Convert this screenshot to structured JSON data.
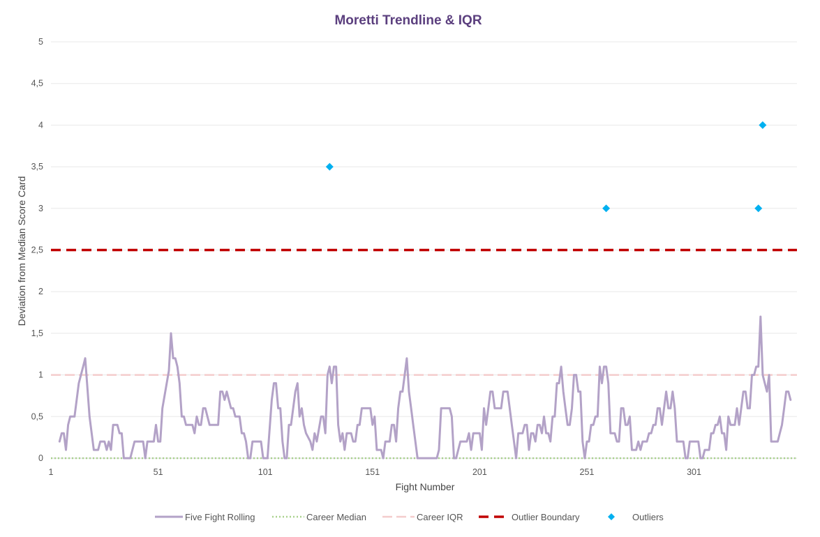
{
  "chart_data": {
    "type": "line",
    "title": "Moretti Trendline & IQR",
    "xlabel": "Fight Number",
    "ylabel": "Deviation from Median Score Card",
    "xlim": [
      1,
      349
    ],
    "ylim": [
      0,
      5
    ],
    "x_ticks": [
      "1",
      "51",
      "101",
      "151",
      "201",
      "251",
      "301"
    ],
    "x_tick_values": [
      1,
      51,
      101,
      151,
      201,
      251,
      301
    ],
    "y_ticks": [
      "0",
      "0,5",
      "1",
      "1,5",
      "2",
      "2,5",
      "3",
      "3,5",
      "4",
      "4,5",
      "5"
    ],
    "y_tick_values": [
      0,
      0.5,
      1,
      1.5,
      2,
      2.5,
      3,
      3.5,
      4,
      4.5,
      5
    ],
    "grid": true,
    "legend_position": "bottom",
    "series": [
      {
        "name": "Five Fight Rolling",
        "kind": "line",
        "color": "#b3a2c7",
        "points": [
          [
            5,
            0.2
          ],
          [
            6,
            0.3
          ],
          [
            7,
            0.3
          ],
          [
            8,
            0.1
          ],
          [
            9,
            0.4
          ],
          [
            10,
            0.5
          ],
          [
            12,
            0.5
          ],
          [
            14,
            0.9
          ],
          [
            16,
            1.1
          ],
          [
            17,
            1.2
          ],
          [
            19,
            0.5
          ],
          [
            21,
            0.1
          ],
          [
            23,
            0.1
          ],
          [
            24,
            0.2
          ],
          [
            26,
            0.2
          ],
          [
            27,
            0.1
          ],
          [
            28,
            0.2
          ],
          [
            29,
            0.1
          ],
          [
            30,
            0.4
          ],
          [
            32,
            0.4
          ],
          [
            33,
            0.3
          ],
          [
            34,
            0.3
          ],
          [
            35,
            0.0
          ],
          [
            38,
            0.0
          ],
          [
            40,
            0.2
          ],
          [
            44,
            0.2
          ],
          [
            45,
            0.0
          ],
          [
            46,
            0.2
          ],
          [
            49,
            0.2
          ],
          [
            50,
            0.4
          ],
          [
            51,
            0.2
          ],
          [
            52,
            0.2
          ],
          [
            53,
            0.6
          ],
          [
            55,
            0.9
          ],
          [
            56,
            1.05
          ],
          [
            57,
            1.5
          ],
          [
            58,
            1.2
          ],
          [
            59,
            1.2
          ],
          [
            60,
            1.1
          ],
          [
            61,
            0.9
          ],
          [
            62,
            0.5
          ],
          [
            63,
            0.5
          ],
          [
            64,
            0.4
          ],
          [
            67,
            0.4
          ],
          [
            68,
            0.3
          ],
          [
            69,
            0.5
          ],
          [
            70,
            0.4
          ],
          [
            71,
            0.4
          ],
          [
            72,
            0.6
          ],
          [
            73,
            0.6
          ],
          [
            75,
            0.4
          ],
          [
            79,
            0.4
          ],
          [
            80,
            0.8
          ],
          [
            81,
            0.8
          ],
          [
            82,
            0.7
          ],
          [
            83,
            0.8
          ],
          [
            85,
            0.6
          ],
          [
            86,
            0.6
          ],
          [
            87,
            0.5
          ],
          [
            89,
            0.5
          ],
          [
            90,
            0.3
          ],
          [
            91,
            0.3
          ],
          [
            92,
            0.2
          ],
          [
            93,
            0.0
          ],
          [
            94,
            0.0
          ],
          [
            95,
            0.2
          ],
          [
            99,
            0.2
          ],
          [
            100,
            0.0
          ],
          [
            102,
            0.0
          ],
          [
            104,
            0.7
          ],
          [
            105,
            0.9
          ],
          [
            106,
            0.9
          ],
          [
            107,
            0.6
          ],
          [
            108,
            0.6
          ],
          [
            109,
            0.2
          ],
          [
            110,
            0.0
          ],
          [
            111,
            0.0
          ],
          [
            112,
            0.4
          ],
          [
            113,
            0.4
          ],
          [
            114,
            0.6
          ],
          [
            115,
            0.8
          ],
          [
            116,
            0.9
          ],
          [
            117,
            0.5
          ],
          [
            118,
            0.6
          ],
          [
            119,
            0.4
          ],
          [
            120,
            0.3
          ],
          [
            122,
            0.2
          ],
          [
            123,
            0.1
          ],
          [
            124,
            0.3
          ],
          [
            125,
            0.2
          ],
          [
            127,
            0.5
          ],
          [
            128,
            0.5
          ],
          [
            129,
            0.3
          ],
          [
            130,
            1.0
          ],
          [
            131,
            1.1
          ],
          [
            132,
            0.9
          ],
          [
            133,
            1.1
          ],
          [
            134,
            1.1
          ],
          [
            135,
            0.4
          ],
          [
            136,
            0.2
          ],
          [
            137,
            0.3
          ],
          [
            138,
            0.1
          ],
          [
            139,
            0.3
          ],
          [
            141,
            0.3
          ],
          [
            142,
            0.2
          ],
          [
            143,
            0.2
          ],
          [
            144,
            0.4
          ],
          [
            145,
            0.4
          ],
          [
            146,
            0.6
          ],
          [
            150,
            0.6
          ],
          [
            151,
            0.4
          ],
          [
            152,
            0.5
          ],
          [
            153,
            0.1
          ],
          [
            155,
            0.1
          ],
          [
            156,
            0.0
          ],
          [
            157,
            0.2
          ],
          [
            159,
            0.2
          ],
          [
            160,
            0.4
          ],
          [
            161,
            0.4
          ],
          [
            162,
            0.2
          ],
          [
            163,
            0.6
          ],
          [
            164,
            0.8
          ],
          [
            165,
            0.8
          ],
          [
            166,
            1.0
          ],
          [
            167,
            1.2
          ],
          [
            168,
            0.8
          ],
          [
            169,
            0.6
          ],
          [
            170,
            0.4
          ],
          [
            171,
            0.2
          ],
          [
            172,
            0.0
          ],
          [
            181,
            0.0
          ],
          [
            182,
            0.1
          ],
          [
            183,
            0.6
          ],
          [
            187,
            0.6
          ],
          [
            188,
            0.5
          ],
          [
            189,
            0.0
          ],
          [
            190,
            0.0
          ],
          [
            192,
            0.2
          ],
          [
            195,
            0.2
          ],
          [
            196,
            0.3
          ],
          [
            197,
            0.1
          ],
          [
            198,
            0.3
          ],
          [
            201,
            0.3
          ],
          [
            202,
            0.1
          ],
          [
            203,
            0.6
          ],
          [
            204,
            0.4
          ],
          [
            205,
            0.6
          ],
          [
            206,
            0.8
          ],
          [
            207,
            0.8
          ],
          [
            208,
            0.6
          ],
          [
            211,
            0.6
          ],
          [
            212,
            0.8
          ],
          [
            214,
            0.8
          ],
          [
            215,
            0.6
          ],
          [
            216,
            0.4
          ],
          [
            217,
            0.2
          ],
          [
            218,
            0.0
          ],
          [
            219,
            0.3
          ],
          [
            220,
            0.3
          ],
          [
            221,
            0.3
          ],
          [
            222,
            0.4
          ],
          [
            223,
            0.4
          ],
          [
            224,
            0.1
          ],
          [
            225,
            0.3
          ],
          [
            226,
            0.3
          ],
          [
            227,
            0.2
          ],
          [
            228,
            0.4
          ],
          [
            229,
            0.4
          ],
          [
            230,
            0.3
          ],
          [
            231,
            0.5
          ],
          [
            232,
            0.3
          ],
          [
            233,
            0.3
          ],
          [
            234,
            0.2
          ],
          [
            235,
            0.5
          ],
          [
            236,
            0.5
          ],
          [
            237,
            0.9
          ],
          [
            238,
            0.9
          ],
          [
            239,
            1.1
          ],
          [
            240,
            0.8
          ],
          [
            241,
            0.6
          ],
          [
            242,
            0.4
          ],
          [
            243,
            0.4
          ],
          [
            244,
            0.6
          ],
          [
            245,
            1.0
          ],
          [
            246,
            1.0
          ],
          [
            247,
            0.8
          ],
          [
            248,
            0.8
          ],
          [
            249,
            0.2
          ],
          [
            250,
            0.0
          ],
          [
            251,
            0.2
          ],
          [
            252,
            0.2
          ],
          [
            253,
            0.4
          ],
          [
            254,
            0.4
          ],
          [
            255,
            0.5
          ],
          [
            256,
            0.5
          ],
          [
            257,
            1.1
          ],
          [
            258,
            0.9
          ],
          [
            259,
            1.1
          ],
          [
            260,
            1.1
          ],
          [
            261,
            0.9
          ],
          [
            262,
            0.3
          ],
          [
            264,
            0.3
          ],
          [
            265,
            0.2
          ],
          [
            266,
            0.2
          ],
          [
            267,
            0.6
          ],
          [
            268,
            0.6
          ],
          [
            269,
            0.4
          ],
          [
            270,
            0.4
          ],
          [
            271,
            0.5
          ],
          [
            272,
            0.1
          ],
          [
            273,
            0.1
          ],
          [
            274,
            0.1
          ],
          [
            275,
            0.2
          ],
          [
            276,
            0.1
          ],
          [
            277,
            0.2
          ],
          [
            279,
            0.2
          ],
          [
            280,
            0.3
          ],
          [
            281,
            0.3
          ],
          [
            282,
            0.4
          ],
          [
            283,
            0.4
          ],
          [
            284,
            0.6
          ],
          [
            285,
            0.6
          ],
          [
            286,
            0.4
          ],
          [
            287,
            0.6
          ],
          [
            288,
            0.8
          ],
          [
            289,
            0.6
          ],
          [
            290,
            0.6
          ],
          [
            291,
            0.8
          ],
          [
            292,
            0.6
          ],
          [
            293,
            0.2
          ],
          [
            296,
            0.2
          ],
          [
            297,
            0.0
          ],
          [
            298,
            0.0
          ],
          [
            299,
            0.2
          ],
          [
            303,
            0.2
          ],
          [
            304,
            0.0
          ],
          [
            305,
            0.0
          ],
          [
            306,
            0.1
          ],
          [
            308,
            0.1
          ],
          [
            309,
            0.3
          ],
          [
            310,
            0.3
          ],
          [
            311,
            0.4
          ],
          [
            312,
            0.4
          ],
          [
            313,
            0.5
          ],
          [
            314,
            0.3
          ],
          [
            315,
            0.3
          ],
          [
            316,
            0.1
          ],
          [
            317,
            0.5
          ],
          [
            318,
            0.4
          ],
          [
            319,
            0.4
          ],
          [
            320,
            0.4
          ],
          [
            321,
            0.6
          ],
          [
            322,
            0.4
          ],
          [
            323,
            0.6
          ],
          [
            324,
            0.8
          ],
          [
            325,
            0.8
          ],
          [
            326,
            0.6
          ],
          [
            327,
            0.6
          ],
          [
            328,
            1.0
          ],
          [
            329,
            1.0
          ],
          [
            330,
            1.1
          ],
          [
            331,
            1.1
          ],
          [
            332,
            1.7
          ],
          [
            333,
            1.0
          ],
          [
            334,
            0.9
          ],
          [
            335,
            0.8
          ],
          [
            336,
            1.0
          ],
          [
            337,
            0.2
          ],
          [
            340,
            0.2
          ],
          [
            341,
            0.3
          ],
          [
            342,
            0.4
          ],
          [
            343,
            0.6
          ],
          [
            344,
            0.8
          ],
          [
            345,
            0.8
          ],
          [
            346,
            0.7
          ]
        ]
      },
      {
        "name": "Career Median",
        "kind": "hline",
        "value": 0,
        "color": "#a9d18e"
      },
      {
        "name": "Career IQR",
        "kind": "hline",
        "value": 1,
        "color": "#f4cccc"
      },
      {
        "name": "Outlier Boundary",
        "kind": "hline",
        "value": 2.5,
        "color": "#c00000"
      },
      {
        "name": "Outliers",
        "kind": "scatter",
        "color": "#00b0f0",
        "points": [
          [
            131,
            3.5
          ],
          [
            260,
            3.0
          ],
          [
            331,
            3.0
          ],
          [
            333,
            4.0
          ]
        ]
      }
    ]
  }
}
